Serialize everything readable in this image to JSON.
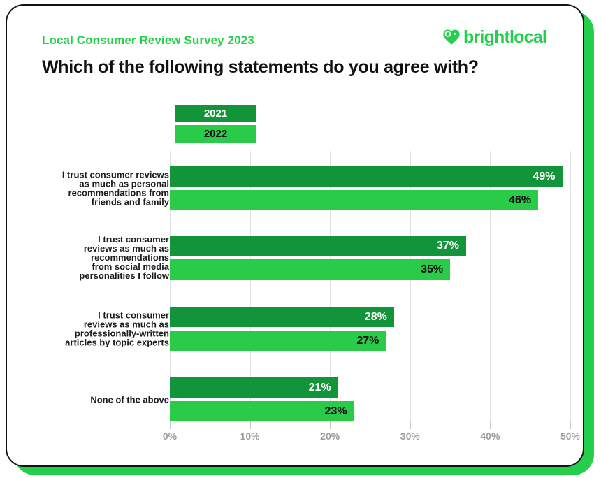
{
  "header": {
    "eyebrow": "Local Consumer Review Survey 2023",
    "title": "Which of the following statements do you agree with?",
    "logo_text": "brightlocal"
  },
  "colors": {
    "brand_green": "#26CF4B",
    "dark_green": "#12943A",
    "light_green": "#2BCB4A",
    "grid_line": "#E2E2E2",
    "tick_mark": "#C6C6C6",
    "tick_label": "#9C9EA0",
    "value_on_dark": "#FFFFFF",
    "value_on_light": "#0D0D0D",
    "card_border": "#121212"
  },
  "legend": [
    {
      "label": "2021"
    },
    {
      "label": "2022"
    }
  ],
  "chart_data": {
    "type": "bar",
    "orientation": "horizontal",
    "title": "Which of the following statements do you agree with?",
    "categories": [
      "I trust consumer reviews\nas much as personal\nrecommendations from\nfriends and family",
      "I trust consumer\nreviews as much as\nrecommendations\nfrom social media\npersonalities I follow",
      "I trust consumer\nreviews as much as\nprofessionally-written\narticles by topic experts",
      "None of the above"
    ],
    "series": [
      {
        "name": "2021",
        "values": [
          49,
          37,
          28,
          21
        ]
      },
      {
        "name": "2022",
        "values": [
          46,
          35,
          27,
          23
        ]
      }
    ],
    "value_suffix": "%",
    "xlim": [
      0,
      50
    ],
    "x_ticks": [
      "0%",
      "10%",
      "20%",
      "30%",
      "40%",
      "50%"
    ],
    "grid": true,
    "legend_position": "top"
  }
}
